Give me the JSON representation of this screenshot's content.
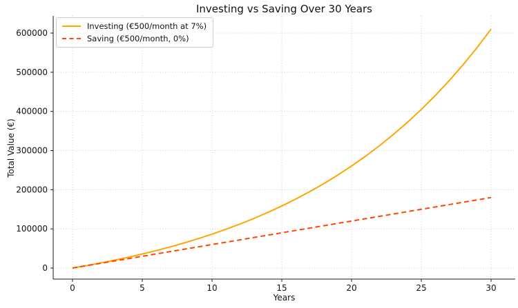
{
  "chart_data": {
    "type": "line",
    "title": "Investing vs Saving Over 30 Years",
    "xlabel": "Years",
    "ylabel": "Total Value (€)",
    "grid": true,
    "legend_position": "upper left",
    "xlim": [
      0,
      30
    ],
    "ylim": [
      0,
      600000
    ],
    "xticks": [
      0,
      5,
      10,
      15,
      20,
      25,
      30
    ],
    "yticks": [
      0,
      100000,
      200000,
      300000,
      400000,
      500000,
      600000
    ],
    "x": [
      0,
      1,
      2,
      3,
      4,
      5,
      6,
      7,
      8,
      9,
      10,
      11,
      12,
      13,
      14,
      15,
      16,
      17,
      18,
      19,
      20,
      21,
      22,
      23,
      24,
      25,
      26,
      27,
      28,
      29,
      30
    ],
    "series": [
      {
        "name": "Investing (€500/month at 7%)",
        "color": "#ffa500",
        "style": "solid",
        "values": [
          0,
          6196,
          12841,
          19965,
          27605,
          35797,
          44580,
          54000,
          64100,
          74929,
          86542,
          98995,
          112349,
          126667,
          142020,
          158481,
          176136,
          195065,
          215363,
          237128,
          260467,
          285491,
          312326,
          341101,
          371957,
          405043,
          440519,
          478561,
          519352,
          563094,
          609985
        ]
      },
      {
        "name": "Saving (€500/month, 0%)",
        "color": "#ff4500",
        "style": "dashed",
        "values": [
          0,
          6000,
          12000,
          18000,
          24000,
          30000,
          36000,
          42000,
          48000,
          54000,
          60000,
          66000,
          72000,
          78000,
          84000,
          90000,
          96000,
          102000,
          108000,
          114000,
          120000,
          126000,
          132000,
          138000,
          144000,
          150000,
          156000,
          162000,
          168000,
          174000,
          180000
        ]
      }
    ]
  }
}
